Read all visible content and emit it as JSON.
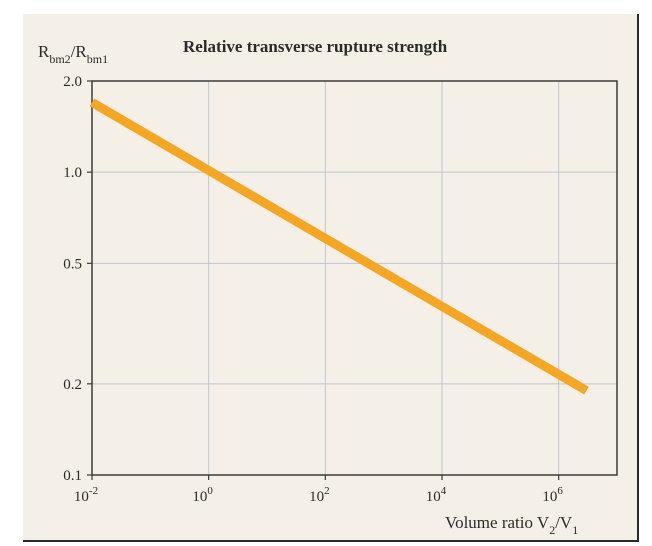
{
  "chart_data": {
    "type": "line",
    "title": "Relative transverse rupture strength",
    "ylabel": {
      "main": "R",
      "sub1": "bm2",
      "sep": "/R",
      "sub2": "bm1"
    },
    "xlabel": {
      "prefix": "Volume ratio V",
      "sub1": "2",
      "sep": "/V",
      "sub2": "1"
    },
    "xscale": "log",
    "yscale": "log",
    "xlim": [
      0.01,
      10000000
    ],
    "ylim": [
      0.1,
      2.0
    ],
    "x_ticks": [
      {
        "value": 0.01,
        "base": "10",
        "exp": "-2"
      },
      {
        "value": 1,
        "base": "10",
        "exp": "0"
      },
      {
        "value": 100,
        "base": "10",
        "exp": "2"
      },
      {
        "value": 10000,
        "base": "10",
        "exp": "4"
      },
      {
        "value": 1000000,
        "base": "10",
        "exp": "6"
      }
    ],
    "y_ticks": [
      {
        "value": 0.1,
        "label": "0.1"
      },
      {
        "value": 0.2,
        "label": "0.2"
      },
      {
        "value": 0.5,
        "label": "0.5"
      },
      {
        "value": 1.0,
        "label": "1.0"
      },
      {
        "value": 2.0,
        "label": "2.0"
      }
    ],
    "grid": true,
    "series": [
      {
        "x": [
          0.01,
          3000000
        ],
        "y": [
          1.7,
          0.19
        ],
        "color": "#f5a623"
      }
    ]
  }
}
